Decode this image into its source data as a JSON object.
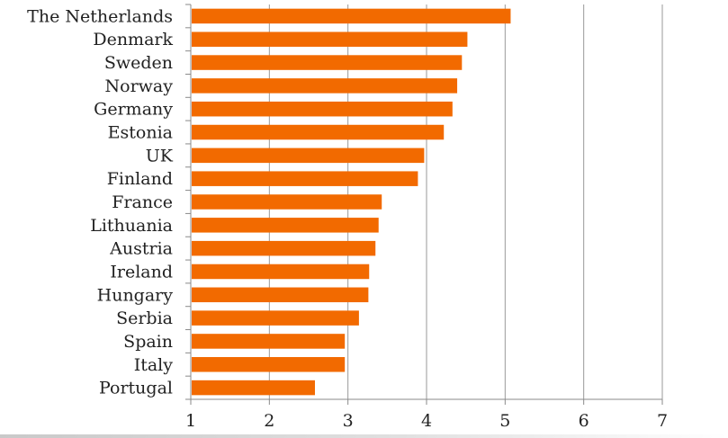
{
  "chart_data": {
    "type": "bar",
    "orientation": "horizontal",
    "title": "",
    "xlabel": "",
    "ylabel": "",
    "categories": [
      "The Netherlands",
      "Denmark",
      "Sweden",
      "Norway",
      "Germany",
      "Estonia",
      "UK",
      "Finland",
      "France",
      "Lithuania",
      "Austria",
      "Ireland",
      "Hungary",
      "Serbia",
      "Spain",
      "Italy",
      "Portugal"
    ],
    "values": [
      5.07,
      4.52,
      4.45,
      4.39,
      4.33,
      4.22,
      3.97,
      3.89,
      3.43,
      3.39,
      3.35,
      3.27,
      3.26,
      3.14,
      2.96,
      2.96,
      2.58
    ],
    "xlim": [
      1,
      7
    ],
    "xticks": [
      1,
      2,
      3,
      4,
      5,
      6,
      7
    ],
    "xtick_labels": [
      "1",
      "2",
      "3",
      "4",
      "5",
      "6",
      "7"
    ],
    "grid": "vertical",
    "legend": "none",
    "bar_color": "#f26a00",
    "grid_color": "#9a9a9a",
    "axis_color": "#8a8a8a",
    "text_color": "#222222"
  }
}
